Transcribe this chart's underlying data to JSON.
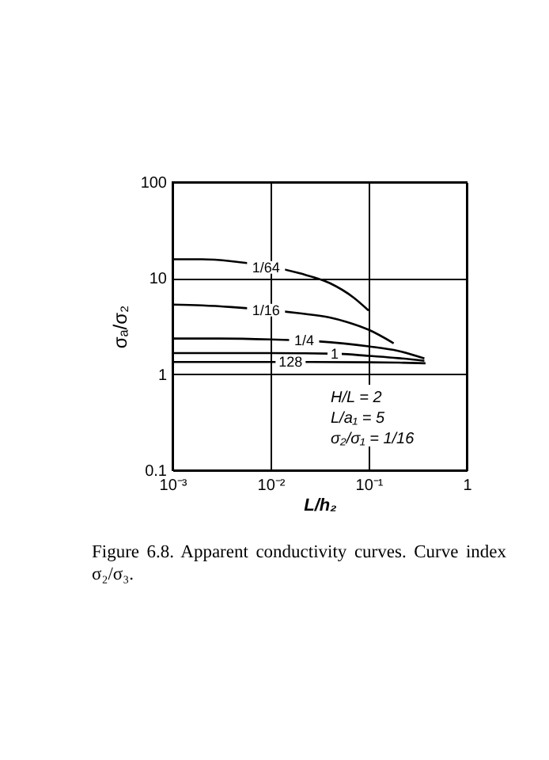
{
  "chart_data": {
    "type": "line",
    "xlabel": "L/h₂",
    "ylabel": "σₐ/σ₂",
    "log": "xy",
    "grid": true,
    "xlim": [
      0.001,
      1
    ],
    "xticks": [
      {
        "value": 0.001,
        "label": "10⁻³"
      },
      {
        "value": 0.01,
        "label": "10⁻²"
      },
      {
        "value": 0.1,
        "label": "10⁻¹"
      },
      1
    ],
    "ylim": [
      0.1,
      100
    ],
    "yticks": [
      0.1,
      1,
      10,
      100
    ],
    "series": [
      {
        "name": "1/64",
        "color": "#000000",
        "x": [
          0.001,
          0.002,
          0.004,
          0.02,
          0.04,
          0.07,
          0.1
        ],
        "values": [
          15.7,
          15.7,
          15.0,
          11.2,
          8.9,
          6.3,
          4.6
        ]
      },
      {
        "name": "1/16",
        "color": "#000000",
        "x": [
          0.001,
          0.002,
          0.004,
          0.02,
          0.04,
          0.06,
          0.1,
          0.18
        ],
        "values": [
          5.3,
          5.2,
          5.0,
          4.3,
          3.9,
          3.5,
          2.9,
          2.1
        ]
      },
      {
        "name": "1/4",
        "color": "#000000",
        "x": [
          0.001,
          0.003,
          0.01,
          0.03,
          0.1,
          0.2,
          0.37
        ],
        "values": [
          2.35,
          2.35,
          2.3,
          2.2,
          1.95,
          1.75,
          1.46
        ]
      },
      {
        "name": "1",
        "color": "#000000",
        "x": [
          0.001,
          0.01,
          0.05,
          0.1,
          0.2,
          0.37
        ],
        "values": [
          1.66,
          1.66,
          1.63,
          1.55,
          1.47,
          1.38
        ]
      },
      {
        "name": "128",
        "color": "#000000",
        "x": [
          0.001,
          0.01,
          0.1,
          0.2,
          0.38
        ],
        "values": [
          1.34,
          1.34,
          1.33,
          1.32,
          1.3
        ]
      }
    ],
    "annotations": [
      "H/L = 2",
      "L/a₁ = 5",
      "σ₂/σ₁ = 1/16",
      "Figure 6.8.  Apparent conductivity curves.  Curve index σ₂/σ₃."
    ]
  }
}
